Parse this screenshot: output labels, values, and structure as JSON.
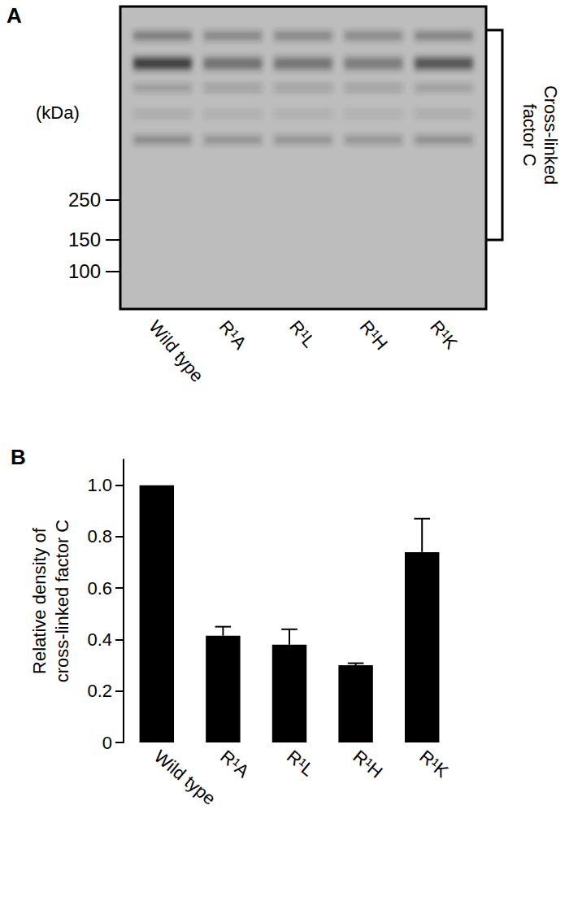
{
  "panel_a": {
    "label": "A",
    "unit": "(kDa)",
    "markers": [
      250,
      150,
      100
    ],
    "lanes": [
      "Wild type",
      "R¹A",
      "R¹L",
      "R¹H",
      "R¹K"
    ],
    "bracket_label": [
      "Cross-linked",
      "factor C"
    ]
  },
  "chart_data": {
    "type": "bar",
    "title": "B",
    "y_label": [
      "Relative density of",
      "cross-linked factor C"
    ],
    "categories": [
      "Wild type",
      "R¹A",
      "R¹L",
      "R¹H",
      "R¹K"
    ],
    "values": [
      1.0,
      0.415,
      0.38,
      0.3,
      0.74
    ],
    "errors": [
      0,
      0.035,
      0.06,
      0.008,
      0.13
    ],
    "color": "#000000",
    "ylim": [
      0,
      1.1
    ],
    "yticks": [
      0,
      0.2,
      0.4,
      0.6,
      0.8,
      {
        "value": 1,
        "label": "1.0"
      }
    ],
    "grid": false
  }
}
